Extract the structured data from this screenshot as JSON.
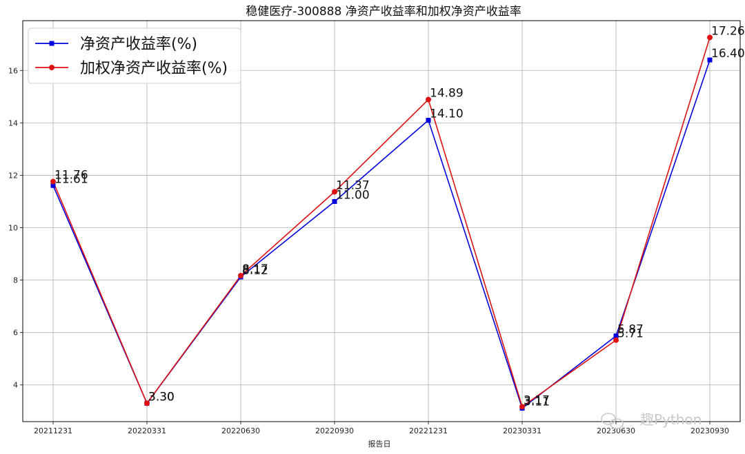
{
  "chart_data": {
    "type": "line",
    "title": "稳健医疗-300888 净资产收益率和加权净资产收益率",
    "xlabel": "报告日",
    "ylabel": "",
    "categories": [
      "20211231",
      "20220331",
      "20220630",
      "20220930",
      "20221231",
      "20230331",
      "20230630",
      "20230930"
    ],
    "ylim": [
      2.6,
      17.9
    ],
    "yticks": [
      4,
      6,
      8,
      10,
      12,
      14,
      16
    ],
    "grid": true,
    "legend_position": "top-left",
    "series": [
      {
        "name": "净资产收益率(%)",
        "values": [
          11.61,
          3.3,
          8.12,
          11.0,
          14.1,
          3.11,
          5.87,
          16.4
        ],
        "labels": [
          "11.61",
          "3.30",
          "8.12",
          "11.00",
          "14.10",
          "3.11",
          "5.87",
          "16.40"
        ],
        "color": "#0000dd",
        "marker": "square"
      },
      {
        "name": "加权净资产收益率(%)",
        "values": [
          11.76,
          3.3,
          8.17,
          11.37,
          14.89,
          3.17,
          5.71,
          17.26
        ],
        "labels": [
          "11.76",
          "3.30",
          "8.17",
          "11.37",
          "14.89",
          "3.17",
          "5.71",
          "17.26"
        ],
        "color": "#dd1111",
        "marker": "circle"
      }
    ]
  },
  "watermark": {
    "text": "趣Python",
    "icon": "wechat-icon"
  }
}
